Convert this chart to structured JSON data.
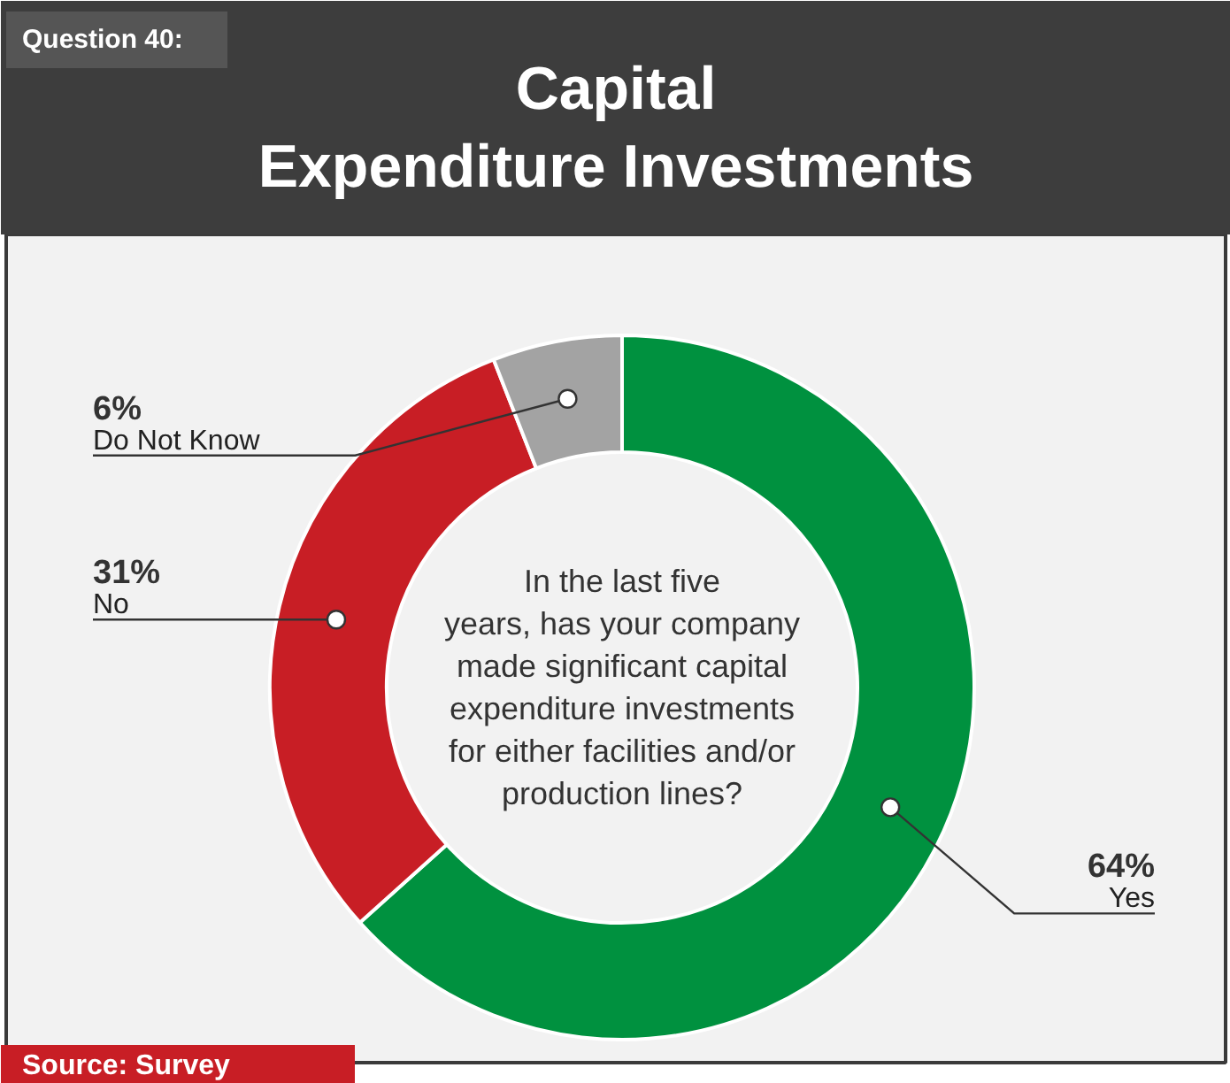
{
  "chart_data": {
    "type": "donut",
    "title": "Capital\nExpenditure Investments",
    "subtitle": "In the last five\nyears, has your company\nmade significant capital\nexpenditure investments\nfor either facilities and/or\nproduction lines?",
    "categories": [
      "Yes",
      "No",
      "Do Not Know"
    ],
    "values": [
      64,
      31,
      6
    ],
    "colors": [
      "#00913f",
      "#c81e25",
      "#a3a3a3"
    ],
    "value_labels": [
      "64%",
      "31%",
      "6%"
    ],
    "annotations": [
      "Question 40:",
      "Source: Survey"
    ]
  }
}
